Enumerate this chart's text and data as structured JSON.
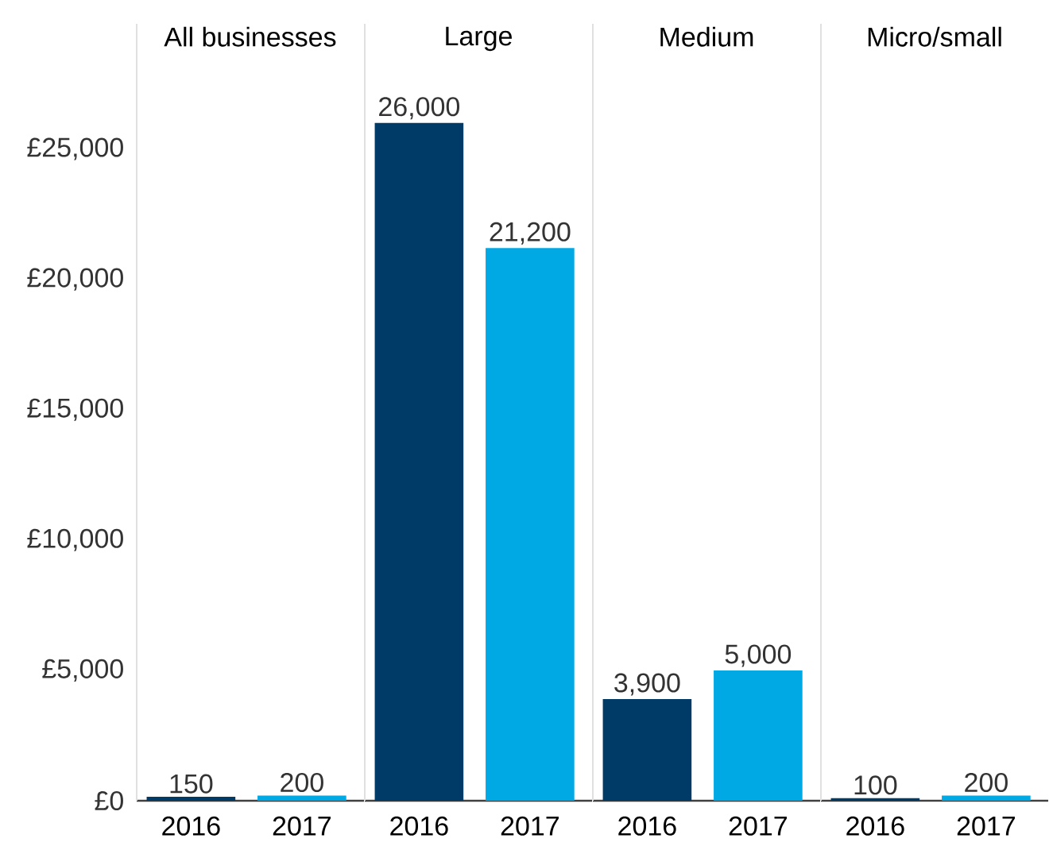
{
  "chart_data": [
    {
      "type": "bar",
      "title": "All businesses",
      "categories": [
        "2016",
        "2017"
      ],
      "values": [
        150,
        200
      ],
      "colors": [
        "#003a66",
        "#00a8e4"
      ],
      "value_labels": [
        "150",
        "200"
      ],
      "ylim": [
        0,
        29800
      ],
      "yticks": [
        {
          "value": 0,
          "label": "£0"
        },
        {
          "value": 5000,
          "label": "£5,000"
        },
        {
          "value": 10000,
          "label": "£10,000"
        },
        {
          "value": 15000,
          "label": "£15,000"
        },
        {
          "value": 20000,
          "label": "£20,000"
        },
        {
          "value": 25000,
          "label": "£25,000"
        }
      ]
    },
    {
      "type": "bar",
      "title": "Large",
      "categories": [
        "2016",
        "2017"
      ],
      "values": [
        26000,
        21200
      ],
      "colors": [
        "#003a66",
        "#00a8e4"
      ],
      "value_labels": [
        "26,000",
        "21,200"
      ],
      "ylim": [
        0,
        29800
      ],
      "tick_labels": "x"
    },
    {
      "type": "bar",
      "title": "Medium",
      "categories": [
        "2016",
        "2017"
      ],
      "values": [
        3900,
        5000
      ],
      "colors": [
        "#003a66",
        "#00a8e4"
      ],
      "value_labels": [
        "3,900",
        "5,000"
      ],
      "ylim": [
        0,
        29800
      ],
      "tick_labels": "x"
    },
    {
      "type": "bar",
      "title": "Micro/small",
      "categories": [
        "2016",
        "2017"
      ],
      "values": [
        100,
        200
      ],
      "colors": [
        "#003a66",
        "#00a8e4"
      ],
      "value_labels": [
        "100",
        "200"
      ],
      "ylim": [
        0,
        29800
      ],
      "tick_labels": "x"
    }
  ]
}
